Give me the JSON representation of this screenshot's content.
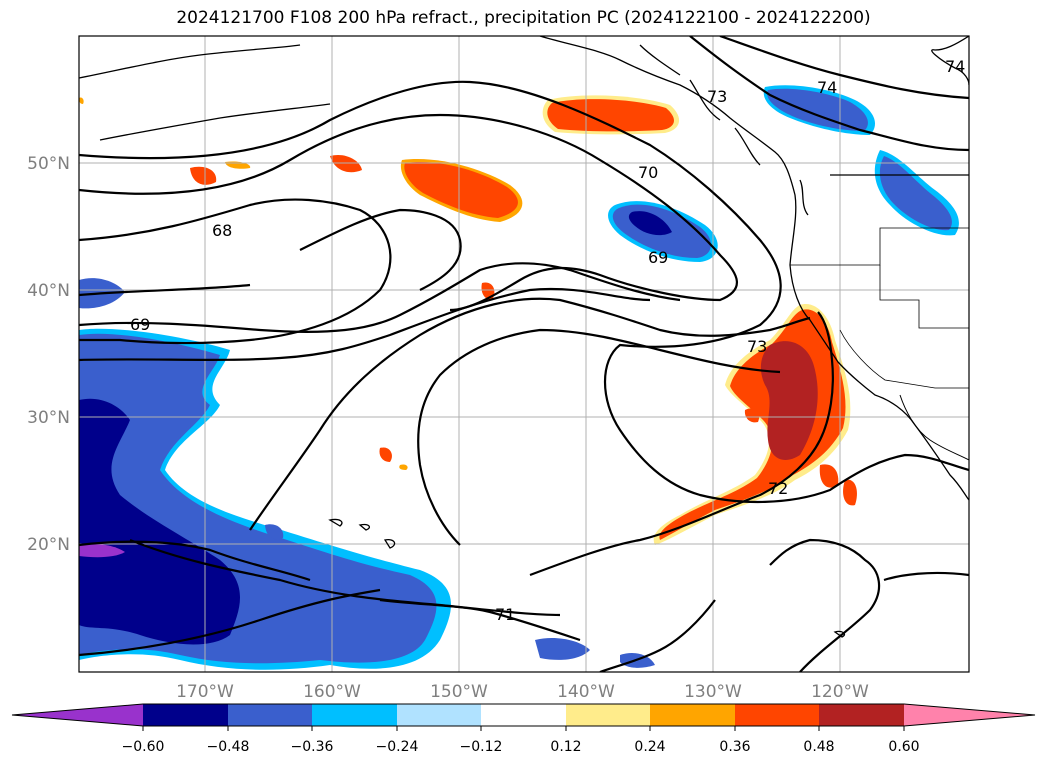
{
  "title": "2024121700 F108 200 hPa refract., precipitation PC (2024122100 - 2024122200)",
  "lat_labels": [
    "50°N",
    "40°N",
    "30°N",
    "20°N"
  ],
  "lon_labels": [
    "170°W",
    "160°W",
    "150°W",
    "140°W",
    "130°W",
    "120°W"
  ],
  "contour_labels": [
    "68",
    "69",
    "70",
    "69",
    "71",
    "72",
    "73",
    "73",
    "74",
    "74"
  ],
  "colorbar": {
    "colors": [
      "#9932cc",
      "#00008b",
      "#3a5fcd",
      "#00bfff",
      "#b0e2ff",
      "#ffffff",
      "#ffec8b",
      "#ffa500",
      "#ff4500",
      "#b22222",
      "#ff82ab"
    ],
    "ticks": [
      "−0.60",
      "−0.48",
      "−0.36",
      "−0.24",
      "−0.12",
      "0.12",
      "0.24",
      "0.36",
      "0.48",
      "0.60"
    ]
  },
  "colors": {
    "grid": "#b0b0b0",
    "contour": "#000000",
    "coast": "#000000",
    "label_grey": "#7f7f7f"
  }
}
